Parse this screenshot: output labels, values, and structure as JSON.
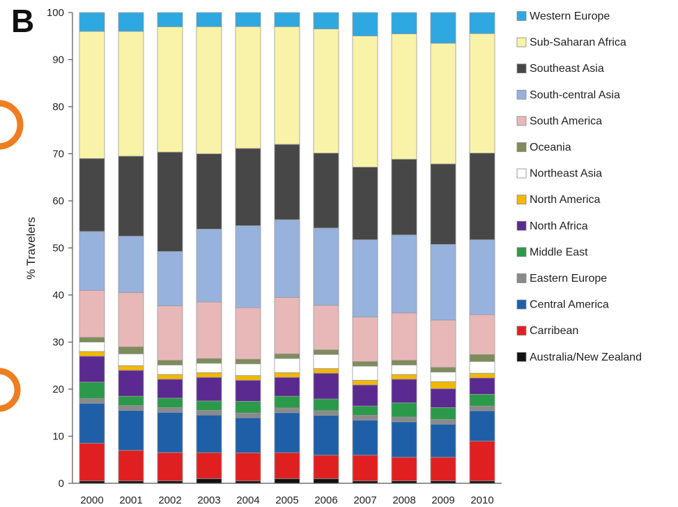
{
  "panel_label": "B",
  "chart_data": {
    "type": "bar",
    "stacked": true,
    "title": "",
    "xlabel": "",
    "ylabel": "% Travelers",
    "ylim": [
      0,
      100
    ],
    "yticks": [
      0,
      10,
      20,
      30,
      40,
      50,
      60,
      70,
      80,
      90,
      100
    ],
    "grid": false,
    "legend_position": "right",
    "categories": [
      "2000",
      "2001",
      "2002",
      "2003",
      "2004",
      "2005",
      "2006",
      "2007",
      "2008",
      "2009",
      "2010"
    ],
    "series": [
      {
        "name": "Australia/New Zealand",
        "color": "#111111",
        "values": [
          0.5,
          0.5,
          0.5,
          1,
          0.5,
          1,
          1,
          0.5,
          0.5,
          0.5,
          0.5
        ]
      },
      {
        "name": "Carribean",
        "color": "#e02020",
        "values": [
          8,
          6.5,
          6,
          5.5,
          6,
          5.5,
          5,
          5.5,
          5,
          5,
          8.5
        ]
      },
      {
        "name": "Central America",
        "color": "#1f5fa8",
        "values": [
          8.5,
          8.5,
          8.5,
          8,
          7.5,
          8.5,
          8.5,
          7.5,
          7.5,
          7,
          6.5
        ]
      },
      {
        "name": "Eastern Europe",
        "color": "#8a8a8a",
        "values": [
          1,
          1,
          1,
          1,
          1,
          1,
          1,
          1,
          1,
          1,
          1
        ]
      },
      {
        "name": "Middle East",
        "color": "#2a9a4a",
        "values": [
          3.5,
          2,
          2,
          2,
          2.5,
          2.5,
          2.5,
          2,
          3,
          2.5,
          2.5
        ]
      },
      {
        "name": "North Africa",
        "color": "#5a2a90",
        "values": [
          5.5,
          5.5,
          4,
          5,
          4.5,
          4,
          5.5,
          4.5,
          5,
          4,
          3.5
        ]
      },
      {
        "name": "North America",
        "color": "#f2b800",
        "values": [
          1,
          1,
          1,
          1,
          1,
          1,
          1,
          1,
          1,
          1.5,
          1
        ]
      },
      {
        "name": "Northeast Asia",
        "color": "#ffffff",
        "values": [
          2,
          2.5,
          2,
          2,
          2.5,
          3,
          3,
          3,
          2,
          2,
          2.5
        ]
      },
      {
        "name": "Oceania",
        "color": "#7e8c5a",
        "values": [
          1,
          1.5,
          1,
          1,
          1,
          1,
          1,
          1,
          1,
          1,
          1.5
        ]
      },
      {
        "name": "South America",
        "color": "#e8b8b8",
        "values": [
          10,
          11.5,
          11.5,
          12,
          11,
          12,
          9.5,
          9.5,
          10,
          10,
          8.5
        ]
      },
      {
        "name": "South-central Asia",
        "color": "#98b2de",
        "values": [
          12.5,
          12,
          11.5,
          15.5,
          17.5,
          16.5,
          16.5,
          16.5,
          16.5,
          16,
          16
        ]
      },
      {
        "name": "Southeast Asia",
        "color": "#474747",
        "values": [
          15.5,
          17,
          21,
          16,
          16.5,
          16,
          16,
          15.5,
          16,
          17,
          18.5
        ]
      },
      {
        "name": "Sub-Saharan Africa",
        "color": "#f8f3a8",
        "values": [
          27,
          26.5,
          26.5,
          27,
          26,
          25,
          26.5,
          28,
          26.5,
          25.5,
          25.5
        ]
      },
      {
        "name": "Western Europe",
        "color": "#2ea8e0",
        "values": [
          4,
          4,
          3,
          3,
          3,
          3,
          3.5,
          5,
          4.5,
          6.5,
          4.5
        ]
      }
    ]
  }
}
